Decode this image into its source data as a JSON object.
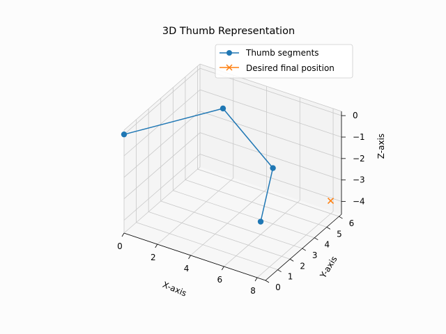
{
  "chart_data": {
    "type": "line",
    "projection": "3d",
    "title": "3D Thumb Representation",
    "xlabel": "X-axis",
    "ylabel": "Y-axis",
    "zlabel": "Z-axis",
    "xlim": [
      0,
      8.5
    ],
    "ylim": [
      0,
      6.2
    ],
    "zlim": [
      -4.6,
      0.2
    ],
    "xticks": [
      "0",
      "2",
      "4",
      "6",
      "8"
    ],
    "yticks": [
      "0",
      "1",
      "2",
      "3",
      "4",
      "5",
      "6"
    ],
    "zticks": [
      "0",
      "−1",
      "−2",
      "−3",
      "−4"
    ],
    "grid": true,
    "legend_position": "top-right",
    "series": [
      {
        "name": "Thumb segments",
        "color": "#1f77b4",
        "marker": "o",
        "points": [
          {
            "x": 0.0,
            "y": 0.0,
            "z": 0.0
          },
          {
            "x": 3.0,
            "y": 4.0,
            "z": 0.0
          },
          {
            "x": 6.0,
            "y": 4.0,
            "z": -2.0
          },
          {
            "x": 6.0,
            "y": 3.0,
            "z": -4.0
          }
        ]
      },
      {
        "name": "Desired final position",
        "color": "#ff7f0e",
        "marker": "x",
        "points": [
          {
            "x": 8.0,
            "y": 6.0,
            "z": -4.0
          }
        ]
      }
    ]
  }
}
